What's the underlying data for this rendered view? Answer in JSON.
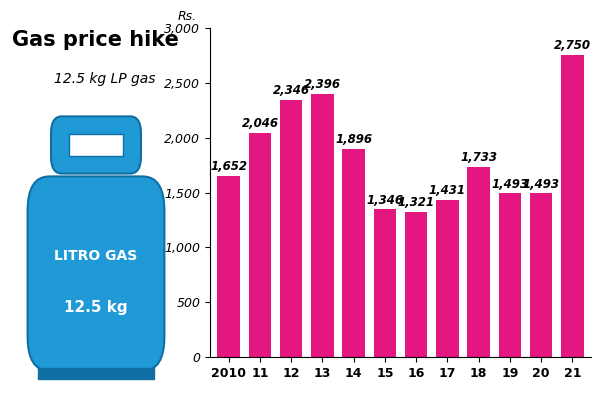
{
  "chart_data": {
    "type": "bar",
    "title": "Gas price hike",
    "subtitle": "12.5 kg LP gas",
    "y_label": "Rs.",
    "annotations": [
      "LITRO GAS",
      "12.5 kg"
    ],
    "categories": [
      "2010",
      "11",
      "12",
      "13",
      "14",
      "15",
      "16",
      "17",
      "18",
      "19",
      "20",
      "21"
    ],
    "values": [
      1652,
      2046,
      2346,
      2396,
      1896,
      1346,
      1321,
      1431,
      1733,
      1493,
      1493,
      2750
    ],
    "value_labels": [
      "1,652",
      "2,046",
      "2,346",
      "2,396",
      "1,896",
      "1,346",
      "1,321",
      "1,431",
      "1,733",
      "1,493",
      "1,493",
      "2,750"
    ],
    "data_labels": true,
    "color": "#e3177f",
    "ylim": [
      0,
      3000
    ],
    "yticks": [
      0,
      500,
      {
        "value": 1000,
        "label": "1,000"
      },
      {
        "value": 1500,
        "label": "1,500"
      },
      {
        "value": 2000,
        "label": "2,000"
      },
      {
        "value": 2500,
        "label": "2,500"
      },
      {
        "value": 3000,
        "label": "3,000"
      }
    ],
    "grid": false
  }
}
